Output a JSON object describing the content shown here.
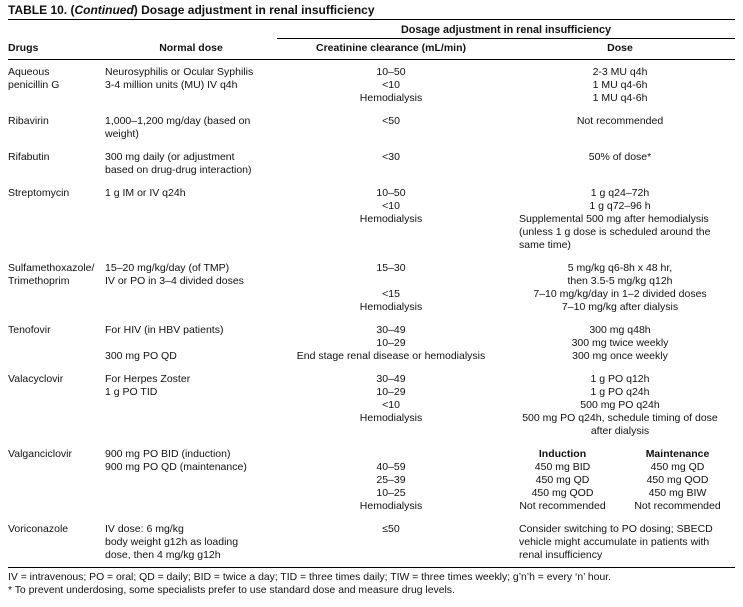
{
  "colors": {
    "background": "#ffffff",
    "text": "#111111",
    "rule": "#000000"
  },
  "title": {
    "prefix": "TABLE 10. (",
    "continued": "Continued",
    "suffix": ") Dosage adjustment in renal insufficiency"
  },
  "header": {
    "spanner": "Dosage adjustment in renal insufficiency",
    "columns": [
      "Drugs",
      "Normal dose",
      "Creatinine clearance (mL/min)",
      "Dose"
    ]
  },
  "groups": [
    {
      "rows": [
        {
          "drug": "Aqueous",
          "normal": "Neurosyphilis or Ocular Syphilis",
          "clearance": "10–50",
          "dose": "2-3 MU q4h"
        },
        {
          "drug": "penicillin G",
          "normal": "3-4 million units (MU) IV q4h",
          "clearance": "<10",
          "dose": "1 MU q4-6h"
        },
        {
          "clearance": "Hemodialysis",
          "dose": "1 MU q4-6h"
        }
      ]
    },
    {
      "rows": [
        {
          "drug": "Ribavirin",
          "normal": "1,000–1,200 mg/day (based on",
          "clearance": "<50",
          "dose": "Not recommended"
        },
        {
          "normal": "weight)"
        }
      ]
    },
    {
      "rows": [
        {
          "drug": "Rifabutin",
          "normal": "300 mg daily (or adjustment",
          "clearance": "<30",
          "dose": "50% of dose*"
        },
        {
          "normal": "based on drug-drug interaction)"
        }
      ]
    },
    {
      "rows": [
        {
          "drug": "Streptomycin",
          "normal": "1 g IM or IV q24h",
          "clearance": "10–50",
          "dose": "1 g q24–72h"
        },
        {
          "clearance": "<10",
          "dose": "1 g q72–96 h"
        },
        {
          "clearance": "Hemodialysis",
          "dose": "Supplemental 500 mg after hemodialysis",
          "dose_align": "left"
        },
        {
          "dose": "(unless 1 g dose is scheduled around the",
          "dose_align": "left"
        },
        {
          "dose": "same time)",
          "dose_align": "left"
        }
      ]
    },
    {
      "rows": [
        {
          "drug": "Sulfamethoxazole/",
          "normal": "15–20 mg/kg/day (of TMP)",
          "clearance": "15–30",
          "dose": "5 mg/kg q6-8h x 48 hr,"
        },
        {
          "drug": "Trimethoprim",
          "normal": "IV or PO in 3–4 divided doses",
          "dose": "then 3.5-5 mg/kg q12h"
        },
        {
          "clearance": "<15",
          "dose": "7–10 mg/kg/day in 1–2 divided doses"
        },
        {
          "clearance": "Hemodialysis",
          "dose": "7–10 mg/kg after dialysis"
        }
      ]
    },
    {
      "rows": [
        {
          "drug": "Tenofovir",
          "normal": "For HIV (in HBV patients)",
          "clearance": "30–49",
          "dose": "300 mg q48h"
        },
        {
          "clearance": "10–29",
          "dose": "300 mg twice weekly"
        },
        {
          "normal": "300 mg PO QD",
          "clearance": "End stage renal disease or hemodialysis",
          "dose": "300 mg once weekly"
        }
      ]
    },
    {
      "rows": [
        {
          "drug": "Valacyclovir",
          "normal": "For Herpes Zoster",
          "clearance": "30–49",
          "dose": "1 g PO q12h"
        },
        {
          "normal": "1 g PO TID",
          "clearance": "10–29",
          "dose": "1 g PO q24h"
        },
        {
          "clearance": "<10",
          "dose": "500 mg PO q24h"
        },
        {
          "clearance": "Hemodialysis",
          "dose": "500 mg PO q24h, schedule timing of dose"
        },
        {
          "dose": "after dialysis"
        }
      ]
    },
    {
      "rows": [
        {
          "drug": "Valganciclovir",
          "normal": "900 mg PO BID (induction)",
          "dose_pair": [
            "Induction",
            "Maintenance"
          ],
          "bold": true
        },
        {
          "normal": "900 mg PO QD (maintenance)",
          "clearance": "40–59",
          "dose_pair": [
            "450 mg BID",
            "450 mg QD"
          ]
        },
        {
          "clearance": "25–39",
          "dose_pair": [
            "450 mg QD",
            "450 mg QOD"
          ]
        },
        {
          "clearance": "10–25",
          "dose_pair": [
            "450 mg QOD",
            "450 mg BIW"
          ]
        },
        {
          "clearance": "Hemodialysis",
          "dose_pair": [
            "Not recommended",
            "Not recommended"
          ]
        }
      ]
    },
    {
      "rows": [
        {
          "drug": "Voriconazole",
          "normal": "IV dose: 6 mg/kg",
          "clearance": "≤50",
          "dose": "Consider switching to PO dosing; SBECD",
          "dose_align": "left"
        },
        {
          "normal": "body weight g12h as loading",
          "dose": "vehicle might accumulate in patients with",
          "dose_align": "left"
        },
        {
          "normal": "dose, then 4 mg/kg g12h",
          "dose": "renal insufficiency",
          "dose_align": "left"
        }
      ]
    }
  ],
  "footnotes": [
    "IV = intravenous; PO = oral; QD = daily; BID = twice a day; TID = three times daily; TIW = three times weekly; g’n’h = every ‘n’ hour.",
    "* To prevent underdosing, some specialists prefer to use standard dose and measure drug levels."
  ]
}
